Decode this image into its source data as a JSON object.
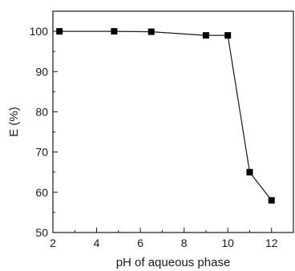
{
  "chart_data": {
    "type": "line",
    "title": "",
    "xlabel": "pH of aqueous phase",
    "ylabel": "E (%)",
    "xlim": [
      2,
      13
    ],
    "ylim": [
      50,
      105
    ],
    "xticks": [
      2,
      4,
      6,
      8,
      10,
      12
    ],
    "yticks": [
      50,
      60,
      70,
      80,
      90,
      100
    ],
    "grid": false,
    "marker": "square",
    "series": [
      {
        "x": [
          2.3,
          4.8,
          6.5,
          9.0,
          10.0,
          11.0,
          12.0
        ],
        "y": [
          100,
          100,
          99.9,
          99.0,
          99.0,
          65.0,
          58.0
        ]
      }
    ]
  }
}
